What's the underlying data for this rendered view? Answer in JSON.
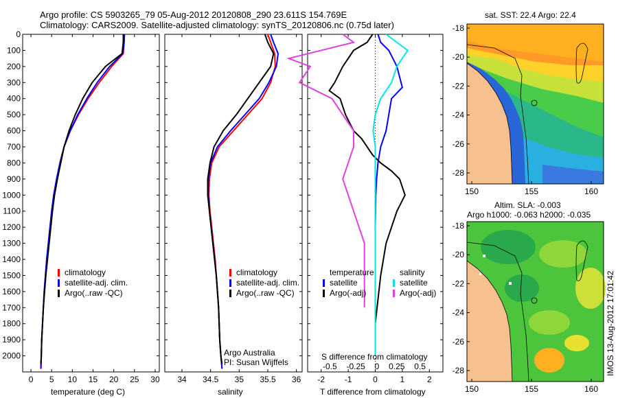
{
  "header": {
    "title_line1": "Argo profile: CS 5903265_79 05-Aug-2012 20120808_290 23.611S 154.769E",
    "title_line2": "Climatology: CARS2009. Satellite-adjusted climatology: synTS_20120806.nc (0.75d later)"
  },
  "panels": {
    "temperature": {
      "xlabel": "temperature (deg C)",
      "legend": [
        "climatology",
        "satellite-adj. clim.",
        "Argo(..raw -QC)"
      ]
    },
    "salinity": {
      "xlabel": "salinity",
      "legend": [
        "climatology",
        "satellite-adj. clim.",
        "Argo(..raw -QC)"
      ],
      "note1": "Argo Australia",
      "note2": "PI: Susan Wijffels"
    },
    "difference": {
      "xlabel": "T difference from climatology",
      "xlabel_top": "S difference from climatology",
      "top_ticks": [
        "-0.5",
        "-0.25",
        "0",
        "0.25",
        "0.5"
      ],
      "legend_head_temp": "temperature",
      "legend_head_sal": "salinity",
      "legend_temp": [
        "satellite",
        "Argo(-adj)"
      ],
      "legend_sal": [
        "satellite",
        "Argo(-adj)"
      ]
    }
  },
  "maps": {
    "sst_title": "sat. SST: 22.4  Argo: 22.4",
    "sla_title1": "Altim. SLA: -0.003",
    "sla_title2": "Argo h1000: -0.063 h2000: -0.035",
    "lon_ticks": [
      "150",
      "155",
      "160"
    ],
    "lat_ticks": [
      "-18",
      "-20",
      "-22",
      "-24",
      "-26",
      "-28"
    ]
  },
  "credit": "IMOS 13-Aug-2012 17:01:42",
  "colors": {
    "climatology": "#ff0000",
    "satellite": "#0000ff",
    "argo": "#000000",
    "sat_sal": "#00e5e5",
    "argo_sal": "#e040e0",
    "land": "#f7c08f"
  },
  "chart_data": [
    {
      "type": "line",
      "panel": "temperature",
      "xlabel": "temperature (deg C)",
      "xlim": [
        -2,
        31
      ],
      "ylim": [
        2100,
        0
      ],
      "xticks": [
        0,
        5,
        10,
        15,
        20,
        25,
        30
      ],
      "yticks": [
        0,
        100,
        200,
        300,
        400,
        500,
        600,
        700,
        800,
        900,
        1000,
        1100,
        1200,
        1300,
        1400,
        1500,
        1600,
        1700,
        1800,
        1900,
        2000
      ],
      "series": [
        {
          "name": "climatology",
          "color": "#ff0000",
          "x": [
            22.5,
            22.5,
            22.3,
            19.5,
            16.5,
            13.8,
            11.5,
            9.5,
            8.0,
            7.0,
            6.2,
            5.5,
            5.0,
            4.6,
            4.2,
            3.8,
            3.5,
            3.2,
            3.0,
            2.8,
            2.6,
            2.5,
            2.4
          ],
          "y": [
            0,
            50,
            120,
            200,
            300,
            400,
            500,
            600,
            700,
            800,
            900,
            1000,
            1100,
            1200,
            1300,
            1400,
            1500,
            1600,
            1700,
            1800,
            1900,
            2000,
            2080
          ]
        },
        {
          "name": "satellite-adj. clim.",
          "color": "#0000ff",
          "x": [
            22.6,
            22.5,
            22.2,
            19.0,
            16.0,
            13.5,
            11.3,
            9.5,
            8.0,
            7.0,
            6.2,
            5.5,
            5.0,
            4.6,
            4.2,
            3.8,
            3.5,
            3.2,
            3.0,
            2.8,
            2.6,
            2.5,
            2.4
          ],
          "y": [
            0,
            50,
            120,
            200,
            300,
            400,
            500,
            600,
            700,
            800,
            900,
            1000,
            1100,
            1200,
            1300,
            1400,
            1500,
            1600,
            1700,
            1800,
            1900,
            2000,
            2080
          ]
        },
        {
          "name": "Argo(..raw -QC)",
          "color": "#000000",
          "x": [
            22.3,
            22.3,
            22.0,
            18.0,
            14.8,
            12.5,
            10.7,
            9.2,
            8.0,
            7.2,
            6.4,
            5.7,
            5.2,
            4.8,
            4.4,
            4.0,
            3.6,
            3.3,
            3.0,
            2.8,
            2.6,
            2.5,
            2.4
          ],
          "y": [
            0,
            50,
            120,
            200,
            300,
            400,
            500,
            600,
            700,
            800,
            900,
            1000,
            1100,
            1200,
            1300,
            1400,
            1500,
            1600,
            1700,
            1800,
            1900,
            2000,
            2050
          ]
        }
      ]
    },
    {
      "type": "line",
      "panel": "salinity",
      "xlabel": "salinity",
      "xlim": [
        33.7,
        36.1
      ],
      "ylim": [
        2100,
        0
      ],
      "xticks": [
        34,
        34.5,
        35,
        35.5,
        36
      ],
      "series": [
        {
          "name": "climatology",
          "color": "#ff0000",
          "x": [
            35.5,
            35.55,
            35.62,
            35.63,
            35.55,
            35.4,
            35.15,
            34.9,
            34.65,
            34.52,
            34.48,
            34.47,
            34.49,
            34.52,
            34.55,
            34.58,
            34.6,
            34.62,
            34.64,
            34.65,
            34.66,
            34.68,
            34.7
          ],
          "y": [
            0,
            50,
            120,
            200,
            300,
            400,
            500,
            600,
            700,
            800,
            900,
            1000,
            1100,
            1200,
            1300,
            1400,
            1500,
            1600,
            1700,
            1800,
            1900,
            2000,
            2080
          ]
        },
        {
          "name": "satellite-adj. clim.",
          "color": "#0000ff",
          "x": [
            35.55,
            35.6,
            35.68,
            35.65,
            35.52,
            35.35,
            35.1,
            34.85,
            34.62,
            34.5,
            34.46,
            34.46,
            34.48,
            34.51,
            34.54,
            34.57,
            34.6,
            34.62,
            34.64,
            34.65,
            34.66,
            34.68,
            34.7
          ],
          "y": [
            0,
            50,
            120,
            200,
            300,
            400,
            500,
            600,
            700,
            800,
            900,
            1000,
            1100,
            1200,
            1300,
            1400,
            1500,
            1600,
            1700,
            1800,
            1900,
            2000,
            2080
          ]
        },
        {
          "name": "Argo(..raw -QC)",
          "color": "#000000",
          "x": [
            35.45,
            35.5,
            35.6,
            35.55,
            35.35,
            35.15,
            34.95,
            34.72,
            34.56,
            34.49,
            34.45,
            34.45,
            34.48,
            34.51,
            34.54,
            34.57,
            34.6,
            34.62,
            34.64,
            34.65,
            34.66,
            34.68,
            34.7
          ],
          "y": [
            0,
            50,
            120,
            200,
            300,
            400,
            500,
            600,
            700,
            800,
            900,
            1000,
            1100,
            1200,
            1300,
            1400,
            1500,
            1600,
            1700,
            1800,
            1900,
            2000,
            2050
          ]
        }
      ]
    },
    {
      "type": "line",
      "panel": "difference",
      "xlabel": "T difference from climatology",
      "xlim": [
        -2.5,
        2.5
      ],
      "ylim": [
        2100,
        0
      ],
      "xticks": [
        -2,
        -1,
        0,
        1,
        2
      ],
      "series": [
        {
          "name": "T satellite",
          "color": "#0000ff",
          "x": [
            0.1,
            0.2,
            0.5,
            0.8,
            1.0,
            0.6,
            0.5,
            0.4,
            0.2,
            0.1,
            0.05,
            0.02,
            0,
            0,
            0,
            0,
            0
          ],
          "y": [
            0,
            50,
            100,
            200,
            330,
            400,
            500,
            600,
            700,
            800,
            900,
            1000,
            1200,
            1400,
            1600,
            1800,
            2000
          ]
        },
        {
          "name": "T Argo(-adj)",
          "color": "#000000",
          "x": [
            -0.1,
            -0.3,
            -0.8,
            -1.2,
            -1.5,
            -1.7,
            -1.3,
            -1.1,
            -0.8,
            -0.5,
            -0.3,
            -0.1,
            0.2,
            0.6,
            0.9,
            1.0,
            1.1,
            0.8,
            0.4,
            0.2,
            0,
            0
          ],
          "y": [
            0,
            50,
            100,
            200,
            300,
            350,
            400,
            500,
            600,
            650,
            700,
            750,
            800,
            850,
            900,
            950,
            1000,
            1100,
            1300,
            1500,
            1800,
            2000
          ]
        },
        {
          "name": "S satellite",
          "color": "#00e5e5",
          "x": [
            0.1,
            0.2,
            0.3,
            0.2,
            0.15,
            0.05,
            0,
            -0.02,
            0,
            0,
            0,
            0,
            0,
            0
          ],
          "y": [
            0,
            50,
            100,
            200,
            300,
            400,
            500,
            600,
            700,
            900,
            1200,
            1500,
            1800,
            2000
          ]
        },
        {
          "name": "S Argo(-adj)",
          "color": "#e040e0",
          "x": [
            -0.3,
            -0.2,
            -0.5,
            -0.8,
            -0.6,
            -0.7,
            -0.4,
            -0.3,
            -0.2,
            -0.2,
            -0.3,
            -0.2,
            -0.1,
            -0.1,
            -0.1
          ],
          "y": [
            0,
            50,
            100,
            150,
            200,
            300,
            400,
            500,
            600,
            700,
            900,
            1100,
            1300,
            1500,
            1700
          ]
        }
      ]
    }
  ]
}
